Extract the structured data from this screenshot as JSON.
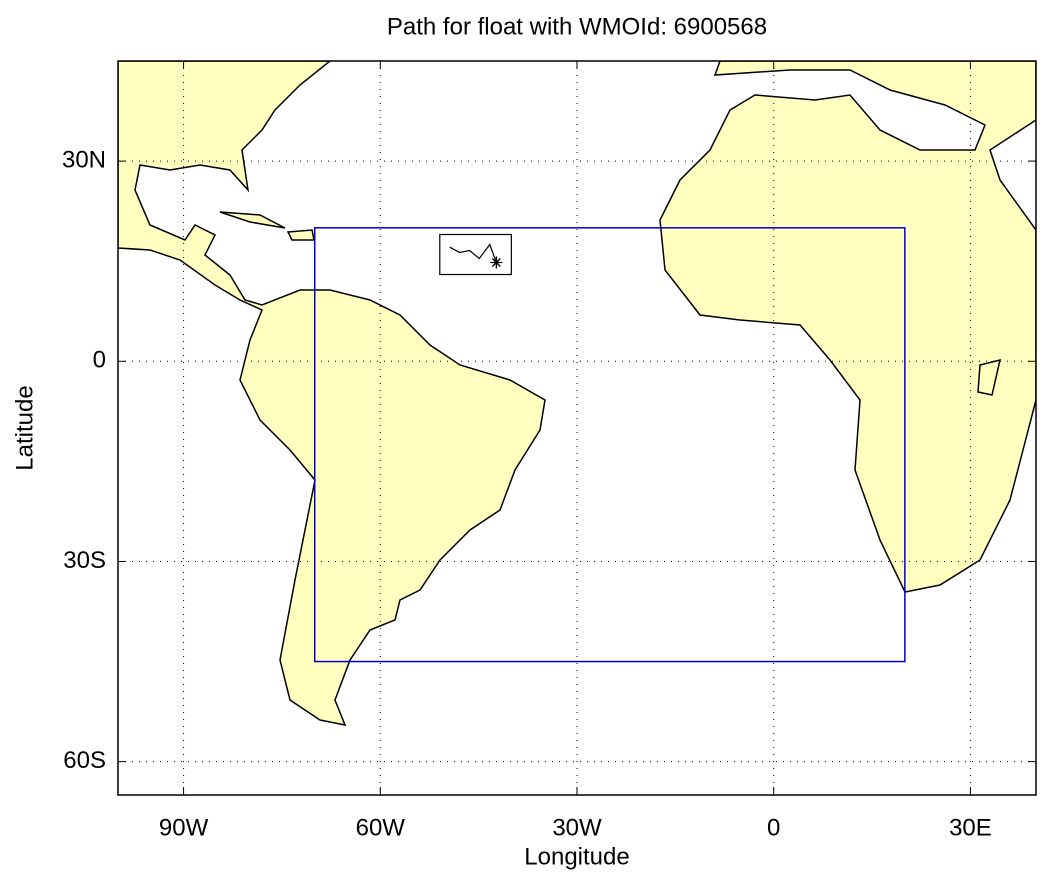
{
  "chart_data": {
    "type": "map",
    "title": "Path for float with WMOId: 6900568",
    "xlabel": "Longitude",
    "ylabel": "Latitude",
    "xlim": [
      -100,
      40
    ],
    "ylim": [
      -65,
      45
    ],
    "xticks": [
      {
        "value": -90,
        "label": "90W"
      },
      {
        "value": -60,
        "label": "60W"
      },
      {
        "value": -30,
        "label": "30W"
      },
      0,
      {
        "value": 30,
        "label": "30E"
      }
    ],
    "yticks": [
      {
        "value": -60,
        "label": "60S"
      },
      {
        "value": -30,
        "label": "30S"
      },
      0,
      {
        "value": 30,
        "label": "30N"
      }
    ],
    "grid": true,
    "land_color": "#ffffc0",
    "region": {
      "lon": [
        -70,
        20
      ],
      "lat": [
        -45,
        20
      ],
      "color": "#0000cc"
    },
    "float_path": {
      "lon": [
        -49.4,
        -47.9,
        -46.4,
        -44.9,
        -43.3,
        -42.3
      ],
      "lat": [
        17.1,
        16.3,
        16.6,
        15.4,
        17.5,
        14.8
      ],
      "color": "#000000"
    }
  }
}
